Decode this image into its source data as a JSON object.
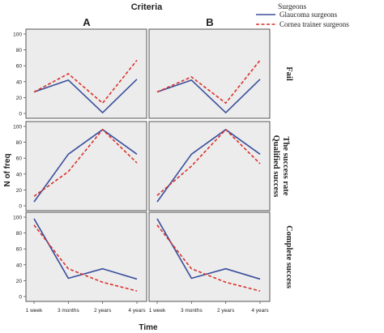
{
  "header": {
    "title": "Criteria"
  },
  "columns": [
    "A",
    "B"
  ],
  "legend": {
    "title": "Surgeons",
    "items": [
      "Glaucoma surgeons",
      "Cornea trainer surgeons"
    ]
  },
  "axes": {
    "ylabel": "N of freq",
    "xlabel": "Time",
    "xticks": [
      "1 week",
      "3 months",
      "2 years",
      "4 years"
    ],
    "yticks": [
      "0",
      "20",
      "40",
      "60",
      "80",
      "100"
    ]
  },
  "rows": [
    {
      "label_lines": [
        "Fail"
      ]
    },
    {
      "label_lines": [
        "The success rate",
        "Qualified success"
      ]
    },
    {
      "label_lines": [
        "Complete success"
      ]
    }
  ],
  "colors": {
    "glaucoma": "#3a4f9c",
    "cornea": "#d9312b",
    "panel_bg": "#ececec",
    "frame": "#555555"
  },
  "chart_data": {
    "type": "line",
    "categories": [
      "1 week",
      "3 months",
      "2 years",
      "4 years"
    ],
    "ylim": [
      0,
      100
    ],
    "xlabel": "Time",
    "ylabel": "N of freq",
    "title": "Criteria",
    "panels": [
      {
        "row": "Fail",
        "column": "A",
        "series": [
          {
            "name": "Glaucoma surgeons",
            "values": [
              27,
              42,
              1,
              43
            ]
          },
          {
            "name": "Cornea trainer surgeons",
            "values": [
              27,
              50,
              13,
              67
            ]
          }
        ]
      },
      {
        "row": "Fail",
        "column": "B",
        "series": [
          {
            "name": "Glaucoma surgeons",
            "values": [
              27,
              42,
              1,
              43
            ]
          },
          {
            "name": "Cornea trainer surgeons",
            "values": [
              27,
              46,
              13,
              67
            ]
          }
        ]
      },
      {
        "row": "Qualified success",
        "column": "A",
        "series": [
          {
            "name": "Glaucoma surgeons",
            "values": [
              5,
              65,
              96,
              65
            ]
          },
          {
            "name": "Cornea trainer surgeons",
            "values": [
              12,
              43,
              96,
              54
            ]
          }
        ]
      },
      {
        "row": "Qualified success",
        "column": "B",
        "series": [
          {
            "name": "Glaucoma surgeons",
            "values": [
              5,
              65,
              96,
              65
            ]
          },
          {
            "name": "Cornea trainer surgeons",
            "values": [
              13,
              50,
              96,
              53
            ]
          }
        ]
      },
      {
        "row": "Complete success",
        "column": "A",
        "series": [
          {
            "name": "Glaucoma surgeons",
            "values": [
              98,
              23,
              35,
              22
            ]
          },
          {
            "name": "Cornea trainer surgeons",
            "values": [
              90,
              35,
              18,
              7
            ]
          }
        ]
      },
      {
        "row": "Complete success",
        "column": "B",
        "series": [
          {
            "name": "Glaucoma surgeons",
            "values": [
              98,
              23,
              35,
              22
            ]
          },
          {
            "name": "Cornea trainer surgeons",
            "values": [
              90,
              35,
              18,
              7
            ]
          }
        ]
      }
    ]
  }
}
